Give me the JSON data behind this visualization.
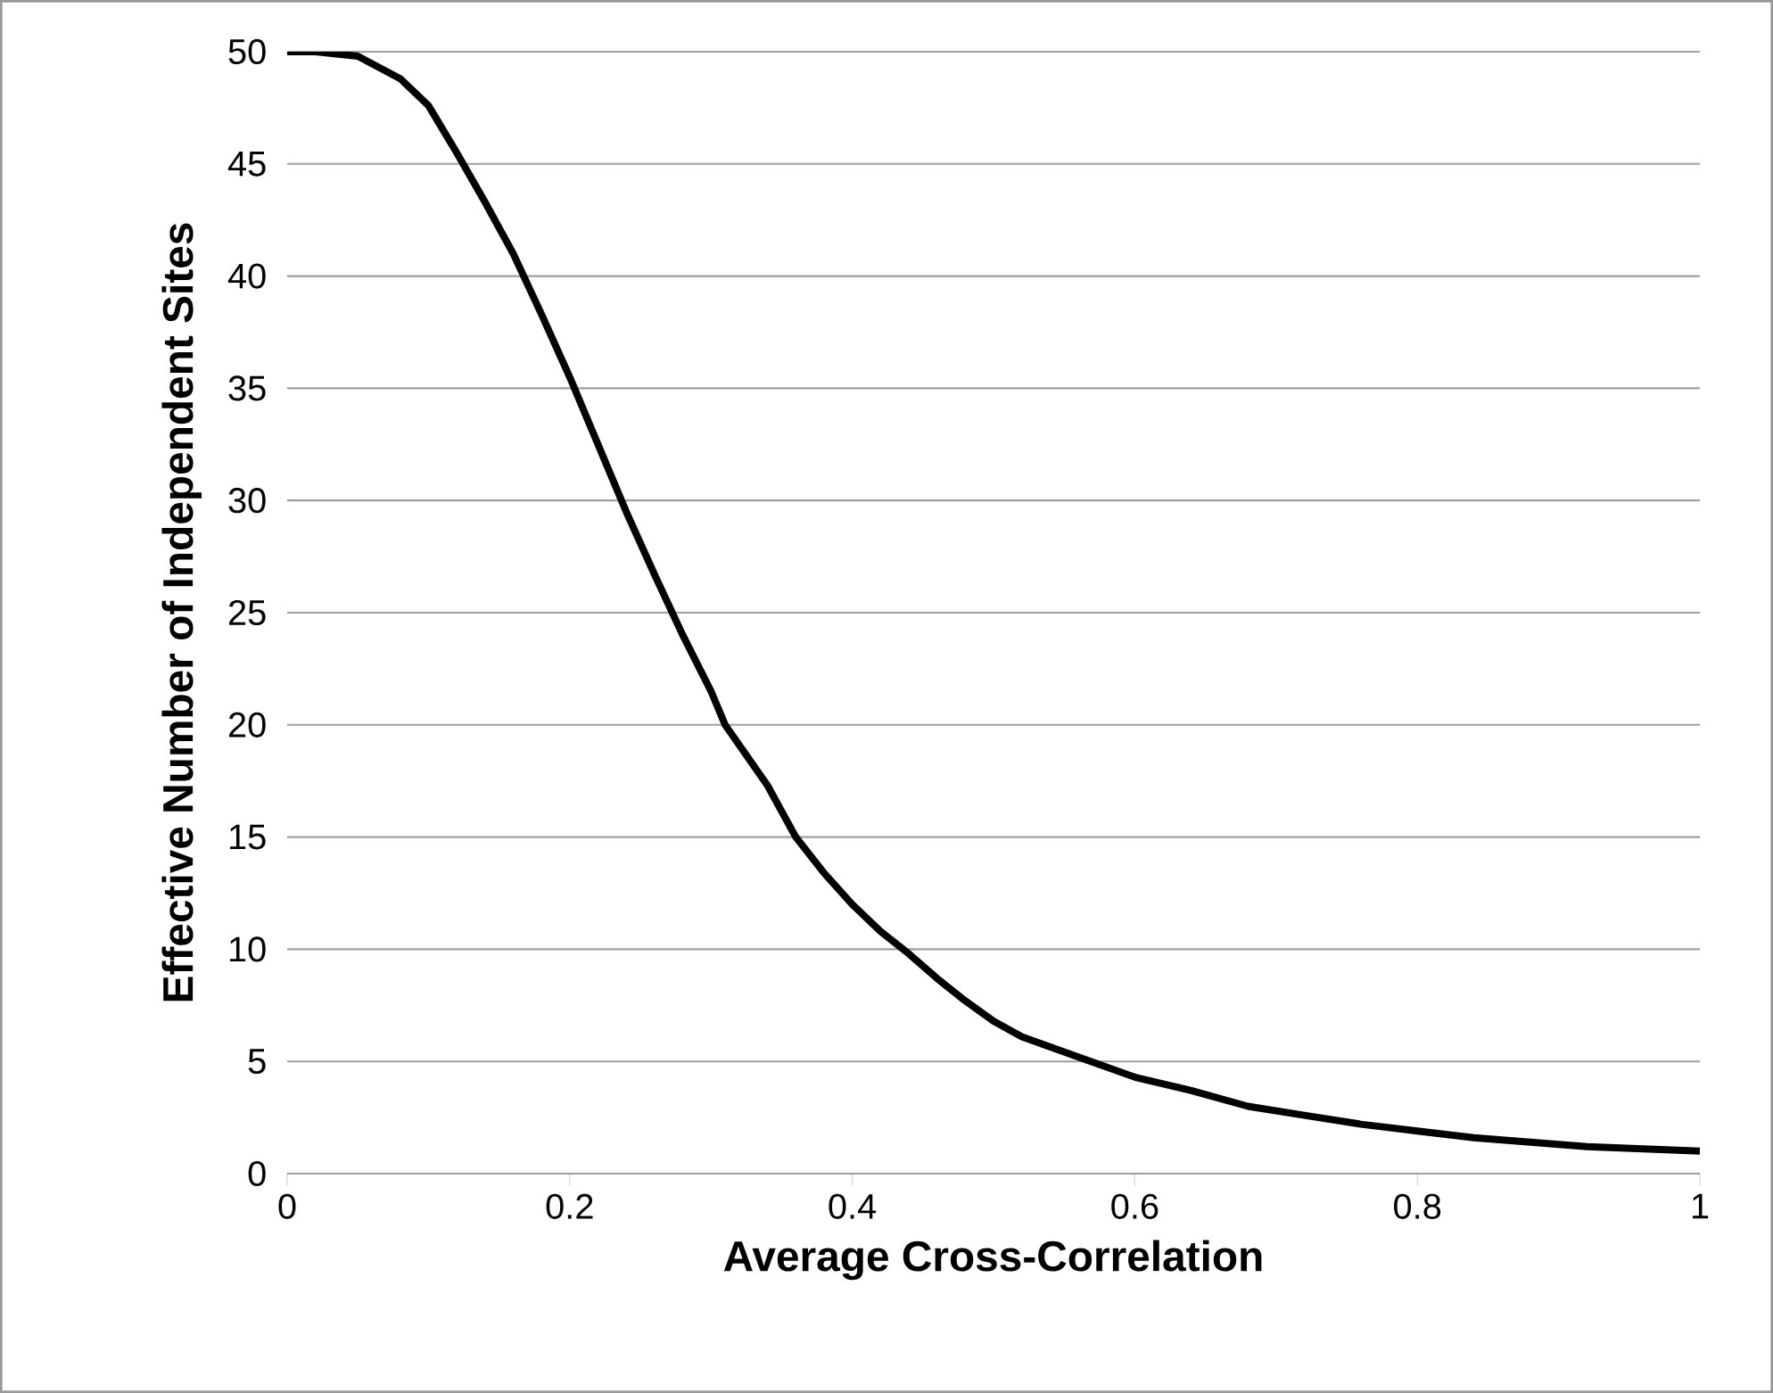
{
  "chart_data": {
    "type": "line",
    "xlabel": "Average Cross-Correlation",
    "ylabel": "Effective Number of Independent Sites",
    "x": [
      0,
      0.02,
      0.05,
      0.08,
      0.1,
      0.12,
      0.14,
      0.16,
      0.18,
      0.2,
      0.22,
      0.24,
      0.26,
      0.28,
      0.3,
      0.31,
      0.34,
      0.36,
      0.38,
      0.4,
      0.42,
      0.44,
      0.46,
      0.48,
      0.5,
      0.52,
      0.56,
      0.6,
      0.64,
      0.68,
      0.72,
      0.76,
      0.8,
      0.84,
      0.88,
      0.92,
      0.96,
      1.0
    ],
    "series": [
      {
        "color": "#000000",
        "values": [
          50,
          50,
          49.8,
          48.8,
          47.6,
          45.5,
          43.3,
          41,
          38.3,
          35.5,
          32.5,
          29.5,
          26.7,
          24,
          21.5,
          20,
          17.3,
          15,
          13.4,
          12,
          10.8,
          9.8,
          8.7,
          7.7,
          6.8,
          6.1,
          5.2,
          4.3,
          3.7,
          3.0,
          2.6,
          2.2,
          1.9,
          1.6,
          1.4,
          1.2,
          1.1,
          1.0
        ]
      }
    ],
    "xlim": [
      0,
      1
    ],
    "ylim": [
      0,
      50
    ],
    "xticks": [
      0,
      0.2,
      0.4,
      0.6,
      0.8,
      1
    ],
    "yticks": [
      0,
      5,
      10,
      15,
      20,
      25,
      30,
      35,
      40,
      45,
      50
    ],
    "grid": "y"
  }
}
